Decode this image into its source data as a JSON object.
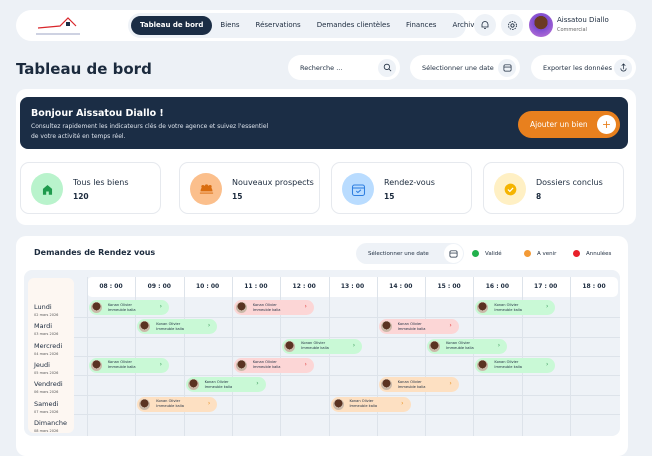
{
  "header": {
    "logo_text": "Agence Immobilière de Bélier",
    "nav": [
      "Tableau de bord",
      "Biens",
      "Réservations",
      "Demandes clientèles",
      "Finances",
      "Archivages"
    ],
    "active_nav": 0,
    "user": {
      "name": "Aissatou Diallo",
      "role": "Commercial"
    }
  },
  "page": {
    "title": "Tableau de bord",
    "search_placeholder": "Recherche ...",
    "date_label": "Sélectionner une date",
    "export_label": "Exporter les données"
  },
  "banner": {
    "greeting": "Bonjour Aissatou Diallo !",
    "text": "Consultez rapidement les indicateurs clés de votre agence et suivez l'essentiel de votre activité en temps réel.",
    "add_button": "Ajouter un bien"
  },
  "stats": [
    {
      "label": "Tous les biens",
      "value": "120",
      "icon": "house-icon",
      "bg": "#b9f3cc",
      "fg": "#1f9a4d"
    },
    {
      "label": "Nouveaux prospects",
      "value": "15",
      "icon": "group-icon",
      "bg": "#fbbf8c",
      "fg": "#d96d10"
    },
    {
      "label": "Rendez-vous",
      "value": "15",
      "icon": "calendar-check-icon",
      "bg": "#b9dcff",
      "fg": "#2f7fe0"
    },
    {
      "label": "Dossiers conclus",
      "value": "8",
      "icon": "check-circle-icon",
      "bg": "#fff0c4",
      "fg": "#f5b400"
    }
  ],
  "schedule": {
    "title": "Demandes de Rendez vous",
    "date_label": "Sélectionner une date",
    "legend": [
      {
        "label": "Validé",
        "color": "#22b14c"
      },
      {
        "label": "A venir",
        "color": "#f39a36"
      },
      {
        "label": "Annulées",
        "color": "#e8202a"
      }
    ],
    "status_colors": {
      "valide": "#c9f9d6",
      "avenir": "#fde0c2",
      "annulee": "#fcd6d6"
    },
    "times": [
      "08 : 00",
      "09 : 00",
      "10 : 00",
      "11 : 00",
      "12 : 00",
      "13 : 00",
      "14 : 00",
      "15 : 00",
      "16 : 00",
      "17 : 00",
      "18 : 00"
    ],
    "days": [
      {
        "name": "Lundi",
        "date": "02 mars 2026"
      },
      {
        "name": "Mardi",
        "date": "03 mars 2026"
      },
      {
        "name": "Mercredi",
        "date": "04 mars 2026"
      },
      {
        "name": "Jeudi",
        "date": "05 mars 2026"
      },
      {
        "name": "Vendredi",
        "date": "06 mars 2026"
      },
      {
        "name": "Samedi",
        "date": "07 mars 2026"
      },
      {
        "name": "Dimanche",
        "date": "08 mars 2026"
      }
    ],
    "appointments": [
      {
        "day": 0,
        "time": "08:00",
        "status": "valide",
        "name": "Konan Olivier",
        "property": "Immeuble kalia"
      },
      {
        "day": 0,
        "time": "11:00",
        "status": "annulee",
        "name": "Konan Olivier",
        "property": "Immeuble kalia"
      },
      {
        "day": 0,
        "time": "16:00",
        "status": "valide",
        "name": "Konan Olivier",
        "property": "Immeuble kalia"
      },
      {
        "day": 1,
        "time": "09:00",
        "status": "valide",
        "name": "Konan Olivier",
        "property": "Immeuble kalia"
      },
      {
        "day": 1,
        "time": "14:00",
        "status": "annulee",
        "name": "Konan Olivier",
        "property": "Immeuble kalia"
      },
      {
        "day": 2,
        "time": "12:00",
        "status": "valide",
        "name": "Konan Olivier",
        "property": "Immeuble kalia"
      },
      {
        "day": 2,
        "time": "15:00",
        "status": "valide",
        "name": "Konan Olivier",
        "property": "Immeuble kalia"
      },
      {
        "day": 3,
        "time": "08:00",
        "status": "valide",
        "name": "Konan Olivier",
        "property": "Immeuble kalia"
      },
      {
        "day": 3,
        "time": "11:00",
        "status": "annulee",
        "name": "Konan Olivier",
        "property": "Immeuble kalia"
      },
      {
        "day": 3,
        "time": "16:00",
        "status": "valide",
        "name": "Konan Olivier",
        "property": "Immeuble kalia"
      },
      {
        "day": 4,
        "time": "10:00",
        "status": "valide",
        "name": "Konan Olivier",
        "property": "Immeuble kalia"
      },
      {
        "day": 4,
        "time": "14:00",
        "status": "avenir",
        "name": "Konan Olivier",
        "property": "Immeuble kalia"
      },
      {
        "day": 5,
        "time": "09:00",
        "status": "avenir",
        "name": "Konan Olivier",
        "property": "Immeuble kalia"
      },
      {
        "day": 5,
        "time": "13:00",
        "status": "avenir",
        "name": "Konan Olivier",
        "property": "Immeuble kalia"
      }
    ]
  }
}
